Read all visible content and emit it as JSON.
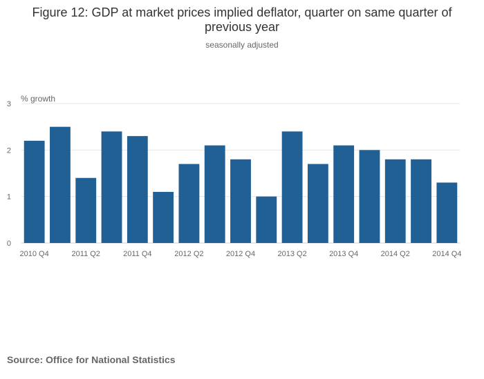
{
  "header": {
    "title": "Figure 12: GDP at market prices implied deflator, quarter on same quarter of previous year",
    "subtitle": "seasonally adjusted"
  },
  "footer": {
    "source": "Source: Office for National Statistics"
  },
  "colors": {
    "bar": "#206095",
    "grid": "#e6e6e6",
    "axis_text": "#666666"
  },
  "chart_data": {
    "type": "bar",
    "title": "Figure 12: GDP at market prices implied deflator, quarter on same quarter of previous year",
    "subtitle": "seasonally adjusted",
    "ylabel": "% growth",
    "xlabel": "",
    "ylim": [
      0,
      3
    ],
    "yticks": [
      0,
      1,
      2,
      3
    ],
    "grid": true,
    "categories": [
      "2010 Q4",
      "2011 Q1",
      "2011 Q2",
      "2011 Q3",
      "2011 Q4",
      "2012 Q1",
      "2012 Q2",
      "2012 Q3",
      "2012 Q4",
      "2013 Q1",
      "2013 Q2",
      "2013 Q3",
      "2013 Q4",
      "2014 Q1",
      "2014 Q2",
      "2014 Q3",
      "2014 Q4"
    ],
    "tick_labels": [
      "2010 Q4",
      "2011 Q2",
      "2011 Q4",
      "2012 Q2",
      "2012 Q4",
      "2013 Q2",
      "2013 Q4",
      "2014 Q2",
      "2014 Q4"
    ],
    "values": [
      2.2,
      2.5,
      1.4,
      2.4,
      2.3,
      1.1,
      1.7,
      2.1,
      1.8,
      1.0,
      2.4,
      1.7,
      2.1,
      2.0,
      1.8,
      1.8,
      1.3
    ]
  }
}
